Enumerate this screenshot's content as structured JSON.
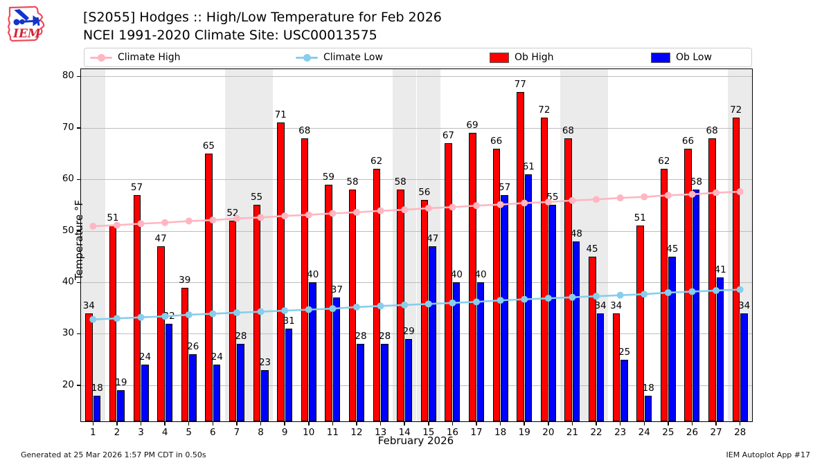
{
  "header": {
    "title_line1": "[S2055] Hodges :: High/Low Temperature for Feb 2026",
    "title_line2": "NCEI 1991-2020 Climate Site: USC00013575",
    "logo_text": "IEM"
  },
  "legend": {
    "items": [
      {
        "label": "Climate High",
        "type": "line",
        "color": "#FFB6C1"
      },
      {
        "label": "Climate Low",
        "type": "line",
        "color": "#87CEEB"
      },
      {
        "label": "Ob High",
        "type": "patch",
        "color": "#FF0000"
      },
      {
        "label": "Ob Low",
        "type": "patch",
        "color": "#0000FF"
      }
    ]
  },
  "chart_data": {
    "type": "bar",
    "subtype": "grouped bars with climatology overlay lines",
    "categories": [
      1,
      2,
      3,
      4,
      5,
      6,
      7,
      8,
      9,
      10,
      11,
      12,
      13,
      14,
      15,
      16,
      17,
      18,
      19,
      20,
      21,
      22,
      23,
      24,
      25,
      26,
      27,
      28
    ],
    "series": [
      {
        "name": "Ob High",
        "type": "bar",
        "color": "#FF0000",
        "values": [
          34,
          51,
          57,
          47,
          39,
          65,
          52,
          55,
          71,
          68,
          59,
          58,
          62,
          58,
          56,
          67,
          69,
          66,
          77,
          72,
          68,
          45,
          34,
          51,
          62,
          66,
          68,
          72
        ]
      },
      {
        "name": "Ob Low",
        "type": "bar",
        "color": "#0000FF",
        "values": [
          18,
          19,
          24,
          32,
          26,
          24,
          28,
          23,
          31,
          40,
          37,
          28,
          28,
          29,
          47,
          40,
          40,
          57,
          61,
          55,
          48,
          34,
          25,
          18,
          45,
          58,
          41,
          34
        ]
      },
      {
        "name": "Climate High",
        "type": "line",
        "color": "#FFB6C1",
        "values": [
          50.9,
          51.1,
          51.4,
          51.6,
          51.9,
          52.1,
          52.4,
          52.6,
          52.9,
          53.1,
          53.4,
          53.6,
          53.9,
          54.1,
          54.4,
          54.6,
          54.9,
          55.1,
          55.4,
          55.6,
          55.9,
          56.1,
          56.4,
          56.6,
          56.9,
          57.1,
          57.4,
          57.6
        ]
      },
      {
        "name": "Climate Low",
        "type": "line",
        "color": "#87CEEB",
        "values": [
          32.8,
          33.0,
          33.2,
          33.4,
          33.7,
          33.9,
          34.1,
          34.3,
          34.5,
          34.7,
          34.9,
          35.2,
          35.4,
          35.6,
          35.8,
          36.0,
          36.2,
          36.5,
          36.7,
          36.9,
          37.1,
          37.3,
          37.5,
          37.7,
          38.0,
          38.2,
          38.4,
          38.6
        ]
      }
    ],
    "title": "[S2055] Hodges :: High/Low Temperature for Feb 2026",
    "subtitle": "NCEI 1991-2020 Climate Site: USC00013575",
    "xlabel": "February 2026",
    "ylabel": "Temperature °F",
    "ylim": [
      13,
      81.4
    ],
    "yticks": [
      20,
      30,
      40,
      50,
      60,
      70,
      80
    ],
    "weekend_shaded_days": [
      1,
      7,
      8,
      14,
      15,
      21,
      22,
      28
    ],
    "weekend_band_color": "#ebebeb",
    "grid": "horizontal",
    "legend_position": "top",
    "bar_labels_shown": true
  },
  "footer": {
    "left": "Generated at 25 Mar 2026 1:57 PM CDT in 0.50s",
    "right": "IEM Autoplot App #17"
  }
}
